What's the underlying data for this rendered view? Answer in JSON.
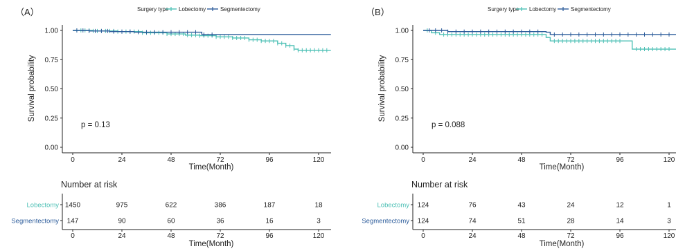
{
  "figure": {
    "legend_title": "Surgery type",
    "colors": {
      "lobectomy": "#4dc0b5",
      "segmentectomy": "#2b5b9a"
    }
  },
  "chart_data": [
    {
      "panel_label": "（A）",
      "type": "line",
      "subtype": "kaplan-meier",
      "xlabel": "Time(Month)",
      "ylabel": "Survival probability",
      "xlim": [
        0,
        120
      ],
      "ylim": [
        0,
        1
      ],
      "xticks": [
        0,
        24,
        48,
        72,
        96,
        120
      ],
      "yticks": [
        "0.00",
        "0.25",
        "0.50",
        "0.75",
        "1.00"
      ],
      "grid": false,
      "legend_position": "top",
      "annotation": "p = 0.13",
      "series": [
        {
          "name": "Lobectomy",
          "color": "#4dc0b5",
          "steps": [
            [
              0,
              1.0
            ],
            [
              10,
              0.995
            ],
            [
              22,
              0.99
            ],
            [
              34,
              0.98
            ],
            [
              46,
              0.97
            ],
            [
              55,
              0.96
            ],
            [
              62,
              0.955
            ],
            [
              70,
              0.945
            ],
            [
              78,
              0.935
            ],
            [
              86,
              0.92
            ],
            [
              92,
              0.91
            ],
            [
              100,
              0.89
            ],
            [
              104,
              0.87
            ],
            [
              108,
              0.84
            ],
            [
              110,
              0.83
            ],
            [
              126,
              0.83
            ]
          ],
          "censor_times": [
            2,
            4,
            6,
            8,
            10,
            12,
            14,
            16,
            18,
            20,
            22,
            24,
            26,
            28,
            30,
            32,
            34,
            36,
            38,
            40,
            42,
            44,
            46,
            48,
            50,
            52,
            54,
            56,
            58,
            60,
            62,
            64,
            66,
            68,
            70,
            72,
            74,
            76,
            78,
            80,
            82,
            84,
            86,
            88,
            90,
            92,
            94,
            96,
            98,
            100,
            102,
            104,
            106,
            108,
            110,
            112,
            114,
            116,
            118,
            120,
            122,
            124
          ]
        },
        {
          "name": "Segmentectomy",
          "color": "#2b5b9a",
          "steps": [
            [
              0,
              1.0
            ],
            [
              8,
              0.995
            ],
            [
              18,
              0.99
            ],
            [
              30,
              0.985
            ],
            [
              63,
              0.965
            ],
            [
              126,
              0.965
            ]
          ],
          "censor_times": [
            2,
            5,
            8,
            11,
            14,
            17,
            20,
            24,
            28,
            32,
            36,
            40,
            44,
            48,
            52,
            56,
            60,
            64,
            68
          ]
        }
      ],
      "risk_table": {
        "title": "Number at risk",
        "xlabel": "Time(Month)",
        "times": [
          0,
          24,
          48,
          72,
          96,
          120
        ],
        "rows": [
          {
            "name": "Lobectomy",
            "color": "#4dc0b5",
            "values": [
              "1450",
              "975",
              "622",
              "386",
              "187",
              "18"
            ]
          },
          {
            "name": "Segmentectomy",
            "color": "#2b5b9a",
            "values": [
              "147",
              "90",
              "60",
              "36",
              "16",
              "3"
            ]
          }
        ]
      }
    },
    {
      "panel_label": "（B）",
      "type": "line",
      "subtype": "kaplan-meier",
      "xlabel": "Time(Month)",
      "ylabel": "Survival probability",
      "xlim": [
        0,
        120
      ],
      "ylim": [
        0,
        1
      ],
      "xticks": [
        0,
        24,
        48,
        72,
        96,
        120
      ],
      "yticks": [
        "0.00",
        "0.25",
        "0.50",
        "0.75",
        "1.00"
      ],
      "grid": false,
      "legend_position": "top",
      "annotation": "p = 0.088",
      "series": [
        {
          "name": "Lobectomy",
          "color": "#4dc0b5",
          "steps": [
            [
              0,
              1.0
            ],
            [
              4,
              0.98
            ],
            [
              8,
              0.965
            ],
            [
              60,
              0.94
            ],
            [
              62,
              0.91
            ],
            [
              102,
              0.91
            ],
            [
              102,
              0.84
            ],
            [
              126,
              0.84
            ]
          ],
          "censor_times": [
            2,
            6,
            10,
            12,
            14,
            16,
            18,
            20,
            22,
            24,
            26,
            28,
            30,
            32,
            34,
            36,
            38,
            40,
            42,
            44,
            46,
            48,
            50,
            52,
            54,
            56,
            58,
            64,
            66,
            68,
            70,
            72,
            74,
            76,
            78,
            80,
            82,
            84,
            86,
            88,
            90,
            92,
            94,
            96,
            104,
            106,
            108,
            110,
            112,
            114,
            116,
            118,
            120
          ]
        },
        {
          "name": "Segmentectomy",
          "color": "#2b5b9a",
          "steps": [
            [
              0,
              1.0
            ],
            [
              12,
              0.99
            ],
            [
              60,
              0.985
            ],
            [
              62,
              0.965
            ],
            [
              126,
              0.965
            ]
          ],
          "censor_times": [
            3,
            6,
            9,
            12,
            16,
            20,
            24,
            28,
            32,
            36,
            40,
            44,
            48,
            52,
            56,
            64,
            68,
            72,
            76,
            80,
            84,
            88,
            92,
            96,
            100,
            104,
            108,
            112,
            116,
            120
          ]
        }
      ],
      "risk_table": {
        "title": "Number at risk",
        "xlabel": "Time(Month)",
        "times": [
          0,
          24,
          48,
          72,
          96,
          120
        ],
        "rows": [
          {
            "name": "Lobectomy",
            "color": "#4dc0b5",
            "values": [
              "124",
              "76",
              "43",
              "24",
              "12",
              "1"
            ]
          },
          {
            "name": "Segmentectomy",
            "color": "#2b5b9a",
            "values": [
              "124",
              "74",
              "51",
              "28",
              "14",
              "3"
            ]
          }
        ]
      }
    }
  ]
}
